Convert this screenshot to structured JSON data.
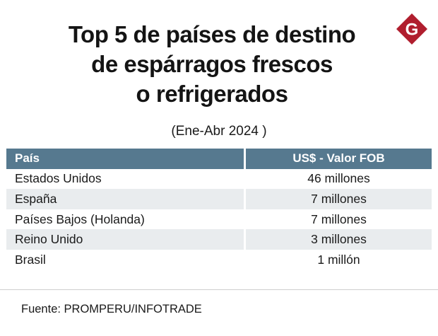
{
  "chart_data": {
    "type": "table",
    "title_lines": [
      "Top 5 de países de destino",
      "de espárragos frescos",
      "o refrigerados"
    ],
    "subtitle": "(Ene-Abr 2024 )",
    "columns": [
      "País",
      "US$ - Valor FOB"
    ],
    "rows": [
      {
        "country": "Estados Unidos",
        "value": "46 millones"
      },
      {
        "country": "España",
        "value": "7 millones"
      },
      {
        "country": "Países Bajos (Holanda)",
        "value": "7 millones"
      },
      {
        "country": "Reino Unido",
        "value": "3 millones"
      },
      {
        "country": "Brasil",
        "value": "1 millón"
      }
    ],
    "source": "Fuente:  PROMPERU/INFOTRADE"
  },
  "brand": {
    "logo_letter": "G",
    "logo_color": "#b01e2e"
  },
  "colors": {
    "header_bg": "#56798f",
    "alt_row_bg": "#e9ecee"
  }
}
